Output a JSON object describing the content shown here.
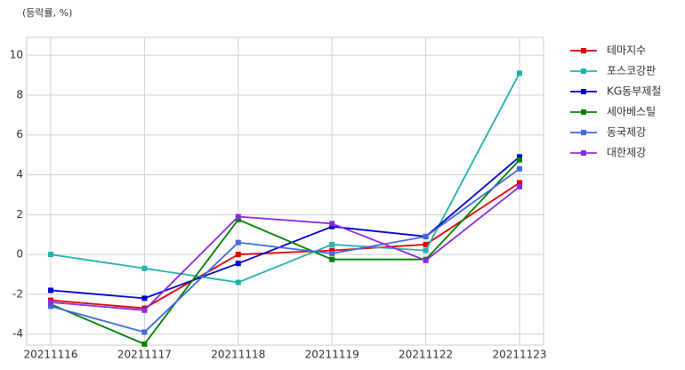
{
  "chart_data": {
    "type": "line",
    "annotation": "(등락률, %)",
    "categories": [
      "20211116",
      "20211117",
      "20211118",
      "20211119",
      "20211122",
      "20211123"
    ],
    "series": [
      {
        "name": "테마지수",
        "color": "#e00000",
        "values": [
          -2.3,
          -2.7,
          0.0,
          0.2,
          0.5,
          3.6
        ]
      },
      {
        "name": "포스코강판",
        "color": "#20b2aa",
        "values": [
          0.0,
          -0.7,
          -1.4,
          0.5,
          0.2,
          9.1
        ]
      },
      {
        "name": "KG동부제철",
        "color": "#0000cd",
        "values": [
          -1.8,
          -2.2,
          -0.45,
          1.4,
          0.9,
          4.9
        ]
      },
      {
        "name": "세아베스틸",
        "color": "#008000",
        "values": [
          -2.5,
          -4.5,
          1.75,
          -0.25,
          -0.25,
          4.75
        ]
      },
      {
        "name": "동국제강",
        "color": "#4169e1",
        "values": [
          -2.6,
          -3.9,
          0.6,
          0.05,
          0.9,
          4.3
        ]
      },
      {
        "name": "대한제강",
        "color": "#8a2be2",
        "values": [
          -2.4,
          -2.8,
          1.9,
          1.55,
          -0.3,
          3.4
        ]
      }
    ],
    "ylim": [
      -4.55,
      10.9
    ],
    "yticks": [
      -4,
      -2,
      0,
      2,
      4,
      6,
      8,
      10
    ],
    "grid": true,
    "legend": "outside-right"
  }
}
